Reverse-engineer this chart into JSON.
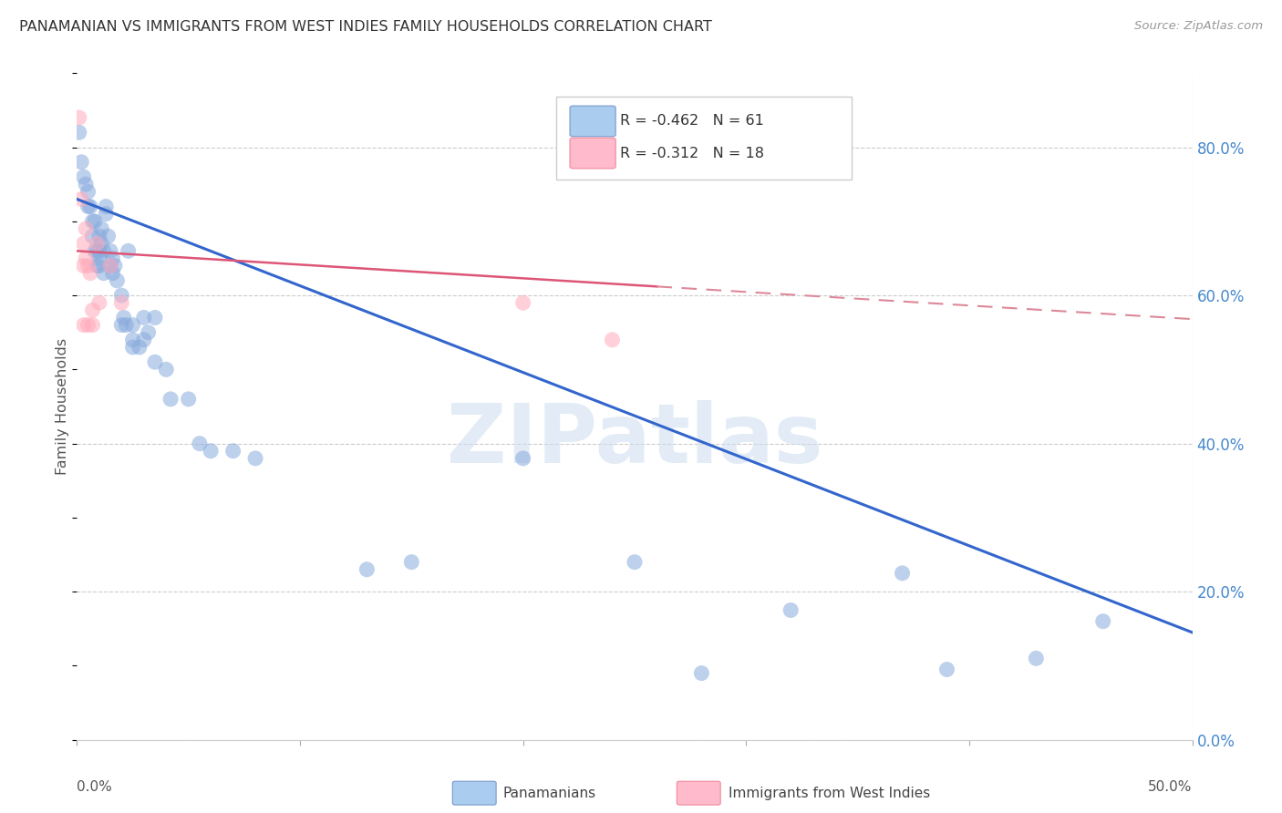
{
  "title": "PANAMANIAN VS IMMIGRANTS FROM WEST INDIES FAMILY HOUSEHOLDS CORRELATION CHART",
  "source": "Source: ZipAtlas.com",
  "ylabel": "Family Households",
  "legend_blue_r": "-0.462",
  "legend_blue_n": "61",
  "legend_pink_r": "-0.312",
  "legend_pink_n": "18",
  "legend_label_blue": "Panamanians",
  "legend_label_pink": "Immigrants from West Indies",
  "blue_dot_color": "#88aadd",
  "pink_dot_color": "#ffaabb",
  "trend_blue_color": "#3366cc",
  "trend_pink_solid_color": "#dd5577",
  "trend_pink_dash_color": "#dd8899",
  "watermark": "ZIPatlas",
  "blue_x": [
    0.001,
    0.002,
    0.003,
    0.004,
    0.005,
    0.005,
    0.006,
    0.007,
    0.007,
    0.008,
    0.008,
    0.009,
    0.009,
    0.01,
    0.01,
    0.01,
    0.011,
    0.011,
    0.012,
    0.013,
    0.013,
    0.014,
    0.015,
    0.015,
    0.016,
    0.016,
    0.017,
    0.018,
    0.02,
    0.021,
    0.022,
    0.023,
    0.025,
    0.025,
    0.028,
    0.03,
    0.032,
    0.035,
    0.04,
    0.042,
    0.05,
    0.055,
    0.06,
    0.07,
    0.08,
    0.13,
    0.15,
    0.2,
    0.25,
    0.28,
    0.32,
    0.37,
    0.39,
    0.43,
    0.46,
    0.01,
    0.012,
    0.02,
    0.025,
    0.03,
    0.035
  ],
  "blue_y": [
    0.82,
    0.78,
    0.76,
    0.75,
    0.74,
    0.72,
    0.72,
    0.7,
    0.68,
    0.7,
    0.66,
    0.66,
    0.64,
    0.68,
    0.66,
    0.64,
    0.69,
    0.67,
    0.66,
    0.72,
    0.71,
    0.68,
    0.66,
    0.64,
    0.65,
    0.63,
    0.64,
    0.62,
    0.6,
    0.57,
    0.56,
    0.66,
    0.56,
    0.54,
    0.53,
    0.57,
    0.55,
    0.57,
    0.5,
    0.46,
    0.46,
    0.4,
    0.39,
    0.39,
    0.38,
    0.23,
    0.24,
    0.38,
    0.24,
    0.09,
    0.175,
    0.225,
    0.095,
    0.11,
    0.16,
    0.65,
    0.63,
    0.56,
    0.53,
    0.54,
    0.51
  ],
  "pink_x": [
    0.001,
    0.002,
    0.003,
    0.003,
    0.004,
    0.004,
    0.005,
    0.006,
    0.007,
    0.009,
    0.01,
    0.015,
    0.02,
    0.2,
    0.24,
    0.003,
    0.005,
    0.007
  ],
  "pink_y": [
    0.84,
    0.73,
    0.67,
    0.64,
    0.69,
    0.65,
    0.64,
    0.63,
    0.58,
    0.67,
    0.59,
    0.64,
    0.59,
    0.59,
    0.54,
    0.56,
    0.56,
    0.56
  ],
  "blue_trend": [
    0.0,
    0.5,
    0.73,
    0.145
  ],
  "pink_trend_solid": [
    0.0,
    0.26,
    0.66,
    0.612
  ],
  "pink_trend_dashed": [
    0.26,
    0.5,
    0.612,
    0.568
  ],
  "xlim": [
    0.0,
    0.5
  ],
  "ylim": [
    0.0,
    0.9
  ],
  "right_yticks": [
    0.0,
    0.2,
    0.4,
    0.6,
    0.8
  ],
  "right_ylabels": [
    "0.0%",
    "20.0%",
    "40.0%",
    "60.0%",
    "80.0%"
  ],
  "xtick_positions": [
    0.0,
    0.1,
    0.2,
    0.3,
    0.4,
    0.5
  ],
  "xlabels_bottom_left": "0.0%",
  "xlabels_bottom_right": "50.0%"
}
